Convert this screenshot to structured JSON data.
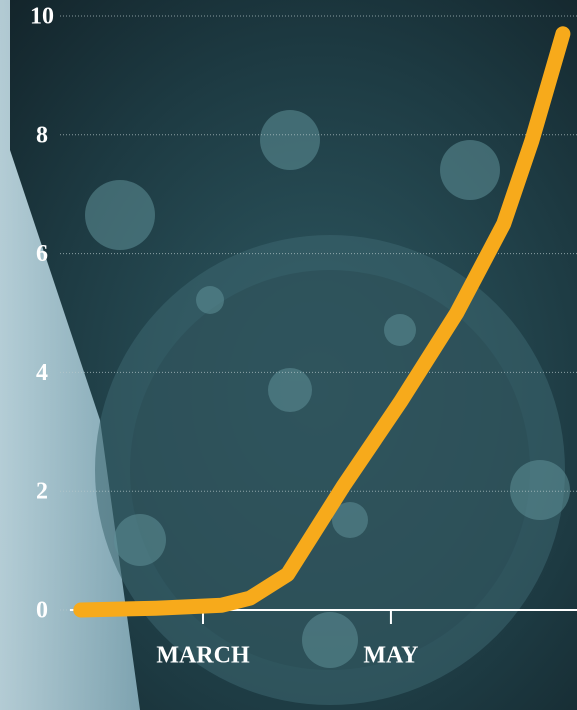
{
  "chart_data": {
    "type": "line",
    "x": [
      1.7,
      2.5,
      3.2,
      3.5,
      3.9,
      4.5,
      5.1,
      5.7,
      6.2,
      6.5,
      6.83
    ],
    "series": [
      {
        "color": "#f7aa1b",
        "values": [
          0,
          0.03,
          0.08,
          0.2,
          0.6,
          2.1,
          3.5,
          5.0,
          6.5,
          7.9,
          9.7
        ]
      }
    ],
    "xlim": [
      0.84,
      6.98
    ],
    "xticks": [
      {
        "value": 3,
        "label": "MARCH"
      },
      {
        "value": 5,
        "label": "MAY"
      }
    ],
    "ylim": [
      0,
      10
    ],
    "yticks": [
      0,
      2,
      4,
      6,
      8,
      10
    ],
    "grid": true
  }
}
